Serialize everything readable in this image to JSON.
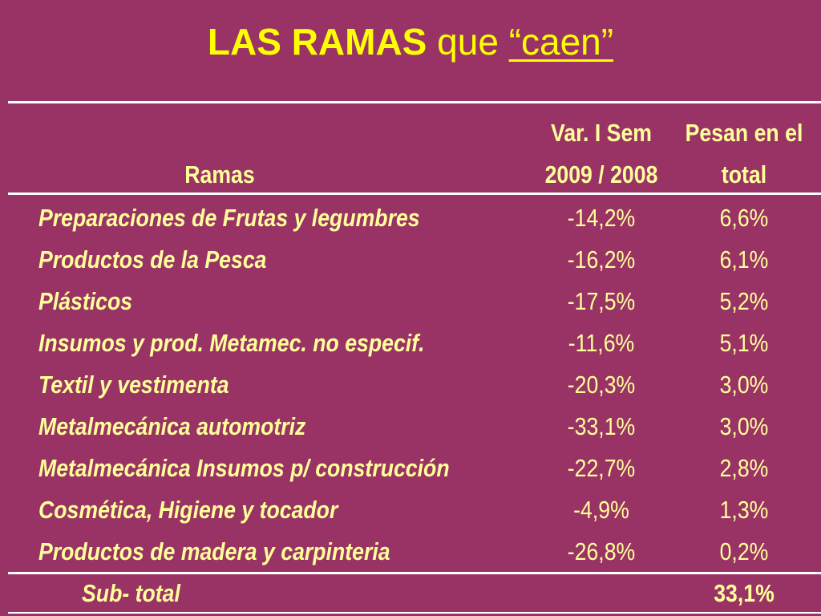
{
  "title": {
    "part1": "LAS RAMAS",
    "part2": "que",
    "part3": "“caen”"
  },
  "table": {
    "headers": {
      "ramas": "Ramas",
      "var_line1": "Var. I Sem",
      "var_line2": "2009 / 2008",
      "pesan_line1": "Pesan en el",
      "pesan_line2": "total"
    },
    "rows": [
      {
        "rama": "Preparaciones de Frutas y legumbres",
        "var": "-14,2%",
        "pesan": "6,6%"
      },
      {
        "rama": "Productos de la Pesca",
        "var": "-16,2%",
        "pesan": "6,1%"
      },
      {
        "rama": "Plásticos",
        "var": "-17,5%",
        "pesan": "5,2%"
      },
      {
        "rama": "Insumos y prod. Metamec. no especif.",
        "var": "-11,6%",
        "pesan": "5,1%"
      },
      {
        "rama": "Textil y vestimenta",
        "var": "-20,3%",
        "pesan": "3,0%"
      },
      {
        "rama": "Metalmecánica automotriz",
        "var": "-33,1%",
        "pesan": "3,0%"
      },
      {
        "rama": "Metalmecánica Insumos p/ construcción",
        "var": "-22,7%",
        "pesan": "2,8%"
      },
      {
        "rama": "Cosmética, Higiene y tocador",
        "var": "-4,9%",
        "pesan": "1,3%"
      },
      {
        "rama": "Productos de madera y carpinteria",
        "var": "-26,8%",
        "pesan": "0,2%"
      }
    ],
    "subtotal": {
      "label": "Sub- total",
      "value": "33,1%"
    }
  },
  "colors": {
    "background": "#993366",
    "title": "#ffff00",
    "text": "#ffff99",
    "rules": "#ffffff"
  }
}
